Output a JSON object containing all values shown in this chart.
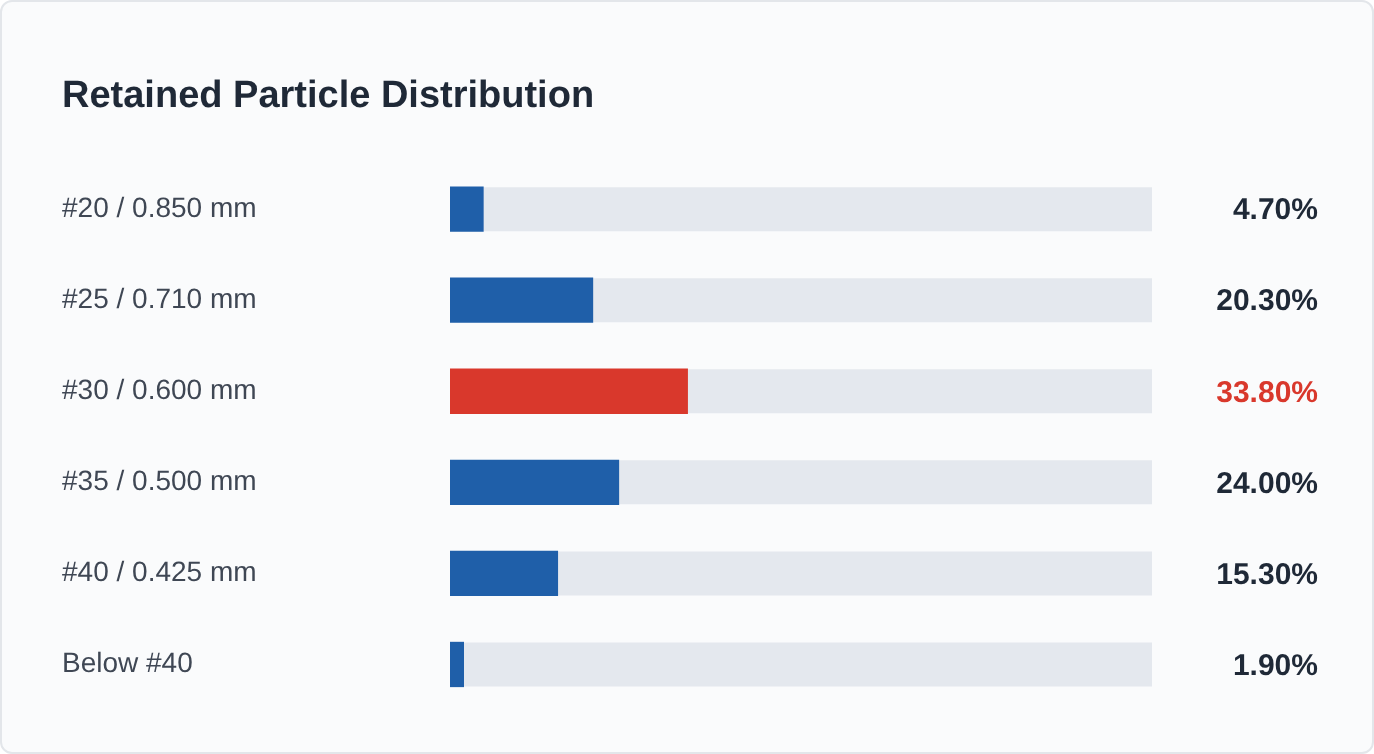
{
  "chart_data": {
    "type": "bar",
    "orientation": "horizontal",
    "title": "Retained Particle Distribution",
    "categories": [
      "#20 / 0.850 mm",
      "#25 / 0.710 mm",
      "#30 / 0.600 mm",
      "#35 / 0.500 mm",
      "#40 / 0.425 mm",
      "Below #40"
    ],
    "series": [
      {
        "color": "#1f5fa9",
        "colors": [
          "#1f5fa9",
          "#1f5fa9",
          "#d9382c",
          "#1f5fa9",
          "#1f5fa9",
          "#1f5fa9"
        ],
        "values": [
          4.7,
          20.3,
          33.8,
          24.0,
          15.3,
          1.9
        ],
        "value_labels": [
          "4.70%",
          "20.30%",
          "33.80%",
          "24.00%",
          "15.30%",
          "1.90%"
        ]
      }
    ],
    "xlim": [
      0,
      100
    ],
    "tick_labels": "y",
    "legend": false
  }
}
